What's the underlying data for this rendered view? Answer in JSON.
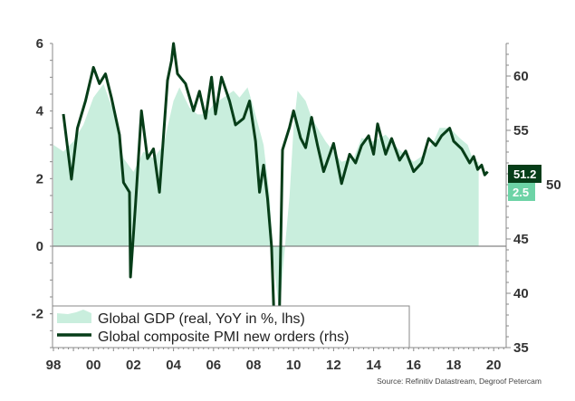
{
  "chart_data": {
    "type": "area+line",
    "title": "",
    "source": "Source: Refinitiv Datastream, Degroof Petercam",
    "x_ticks": [
      "98",
      "00",
      "02",
      "04",
      "06",
      "08",
      "10",
      "12",
      "14",
      "16",
      "18",
      "20"
    ],
    "x_range": [
      1998,
      2020.6
    ],
    "left_axis": {
      "range": [
        -3,
        6
      ],
      "ticks": [
        "6",
        "4",
        "2",
        "0",
        "-2"
      ]
    },
    "right_axis": {
      "range": [
        35,
        63
      ],
      "ticks": [
        "60",
        "55",
        "50",
        "45",
        "40",
        "35"
      ]
    },
    "grid": false,
    "legend_position": "bottom-left",
    "colors": {
      "gdp_area": "#c9eedd",
      "pmi_line": "#063d18",
      "pmi_badge": "#063d18",
      "gdp_badge": "#6dd3a6",
      "zero_line": "#666666"
    },
    "series": [
      {
        "name": "Global GDP (real, YoY in %, lhs)",
        "type": "area",
        "axis": "left",
        "last_value_label": "2.5",
        "x": [
          1998.0,
          1998.5,
          1999.0,
          1999.5,
          2000.0,
          2000.5,
          2001.0,
          2001.5,
          2002.0,
          2002.5,
          2003.0,
          2003.5,
          2004.0,
          2004.3,
          2004.8,
          2005.2,
          2005.6,
          2006.0,
          2006.5,
          2007.0,
          2007.3,
          2007.7,
          2008.0,
          2008.5,
          2008.8,
          2009.0,
          2009.3,
          2009.5,
          2009.8,
          2010.0,
          2010.2,
          2010.6,
          2010.9,
          2011.3,
          2011.6,
          2012.0,
          2012.4,
          2013.0,
          2013.4,
          2014.0,
          2014.6,
          2015.2,
          2016.0,
          2016.5,
          2017.0,
          2017.3,
          2017.8,
          2018.3,
          2018.7,
          2019.0,
          2019.25
        ],
        "values": [
          3.0,
          2.8,
          3.1,
          3.6,
          4.4,
          4.8,
          4.0,
          2.6,
          2.2,
          2.8,
          2.6,
          3.0,
          4.3,
          4.7,
          4.1,
          3.9,
          3.9,
          4.2,
          4.4,
          4.6,
          4.4,
          4.7,
          4.1,
          3.0,
          1.5,
          -0.5,
          -2.0,
          -0.5,
          1.5,
          3.5,
          4.6,
          4.3,
          3.8,
          3.4,
          3.1,
          2.8,
          2.5,
          2.6,
          3.2,
          3.1,
          3.3,
          2.9,
          2.5,
          2.7,
          3.1,
          3.5,
          3.5,
          3.2,
          3.0,
          2.5,
          2.5
        ]
      },
      {
        "name": "Global composite PMI new orders (rhs)",
        "type": "line",
        "axis": "right",
        "last_value_label": "51.2",
        "x": [
          1998.5,
          1998.9,
          1999.2,
          1999.6,
          2000.0,
          2000.3,
          2000.6,
          2000.9,
          2001.3,
          2001.5,
          2001.8,
          2001.85,
          2002.1,
          2002.4,
          2002.7,
          2003.0,
          2003.3,
          2003.7,
          2003.9,
          2004.0,
          2004.2,
          2004.6,
          2005.0,
          2005.3,
          2005.6,
          2005.9,
          2006.1,
          2006.4,
          2006.8,
          2007.1,
          2007.5,
          2007.8,
          2008.1,
          2008.3,
          2008.5,
          2008.7,
          2008.9,
          2009.05,
          2009.2,
          2009.3,
          2009.45,
          2009.8,
          2010.0,
          2010.35,
          2010.6,
          2010.9,
          2011.2,
          2011.5,
          2012.0,
          2012.4,
          2012.8,
          2013.1,
          2013.4,
          2013.75,
          2014.0,
          2014.2,
          2014.6,
          2014.9,
          2015.3,
          2015.6,
          2016.0,
          2016.4,
          2016.75,
          2017.1,
          2017.4,
          2017.8,
          2018.0,
          2018.4,
          2018.8,
          2019.0,
          2019.2,
          2019.4,
          2019.55,
          2019.7
        ],
        "values": [
          56.5,
          50.5,
          55.2,
          57.7,
          60.8,
          59.3,
          60.2,
          58.0,
          54.6,
          50.2,
          49.3,
          41.5,
          48.1,
          56.8,
          52.4,
          53.3,
          49.3,
          59.6,
          61.4,
          63.0,
          60.2,
          59.3,
          56.8,
          58.6,
          56.1,
          59.9,
          56.5,
          59.9,
          57.7,
          55.5,
          56.1,
          57.7,
          54.0,
          49.3,
          51.8,
          48.7,
          44.3,
          36.5,
          36.0,
          38.7,
          53.2,
          55.3,
          56.8,
          54.3,
          53.4,
          56.2,
          53.6,
          51.2,
          53.8,
          50.1,
          52.8,
          52.0,
          53.6,
          54.5,
          52.8,
          55.6,
          52.8,
          54.25,
          52.25,
          53.1,
          51.2,
          52.0,
          54.25,
          53.6,
          54.5,
          55.2,
          54.0,
          53.3,
          52.0,
          52.6,
          51.4,
          51.8,
          50.9,
          51.2
        ]
      }
    ]
  }
}
